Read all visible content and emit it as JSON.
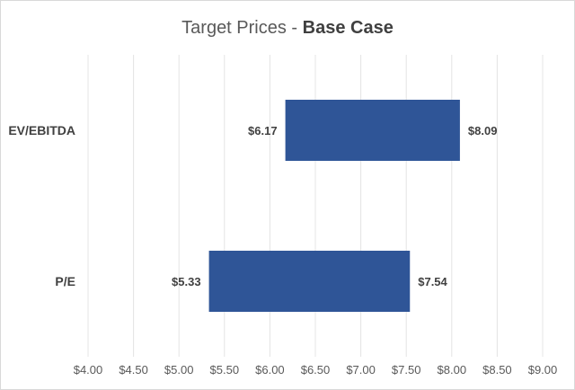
{
  "chart_data": {
    "type": "bar",
    "orientation": "horizontal-floating",
    "title": "Target Prices - ",
    "title_emphasis": "Base Case",
    "categories": [
      "EV/EBITDA",
      "P/E"
    ],
    "series": [
      {
        "low": 6.17,
        "high": 8.09,
        "low_label": "$6.17",
        "high_label": "$8.09"
      },
      {
        "low": 5.33,
        "high": 7.54,
        "low_label": "$5.33",
        "high_label": "$7.54"
      }
    ],
    "xlim": [
      4.0,
      9.0
    ],
    "x_ticks": [
      4.0,
      4.5,
      5.0,
      5.5,
      6.0,
      6.5,
      7.0,
      7.5,
      8.0,
      8.5,
      9.0
    ],
    "x_tick_labels": [
      "$4.00",
      "$4.50",
      "$5.00",
      "$5.50",
      "$6.00",
      "$6.50",
      "$7.00",
      "$7.50",
      "$8.00",
      "$8.50",
      "$9.00"
    ],
    "grid": true,
    "legend": "none",
    "bar_color": "#2f5597",
    "grid_color": "#e4e4e4"
  }
}
